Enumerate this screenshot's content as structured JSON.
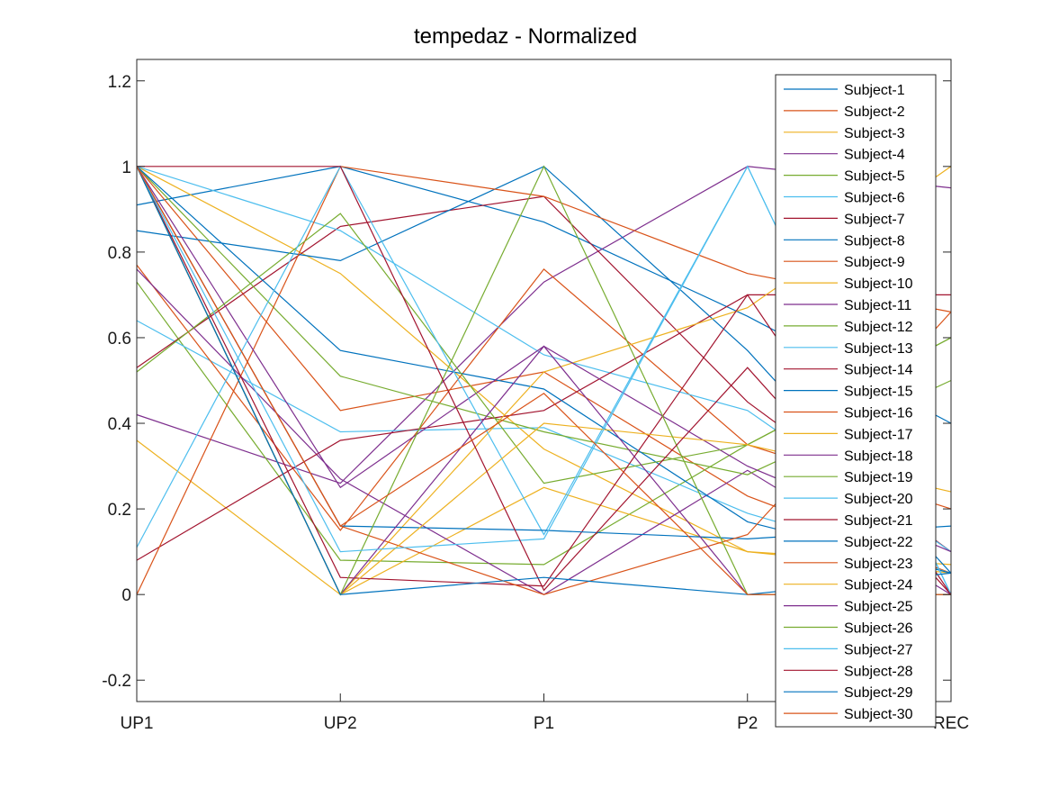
{
  "chart_data": {
    "type": "line",
    "title": "tempedaz - Normalized",
    "xlabel": "",
    "ylabel": "",
    "categories": [
      "UP1",
      "UP2",
      "P1",
      "P2",
      "REC"
    ],
    "ylim": [
      -0.25,
      1.25
    ],
    "yticks": [
      -0.2,
      0,
      0.2,
      0.4,
      0.6,
      0.8,
      1,
      1.2
    ],
    "ytick_labels": [
      "-0.2",
      "0",
      "0.2",
      "0.4",
      "0.6",
      "0.8",
      "1",
      "1.2"
    ],
    "grid": false,
    "legend_position": "top-right",
    "colors": [
      "#0072BD",
      "#D95319",
      "#EDB120",
      "#7E2F8E",
      "#77AC30",
      "#4DBEEE",
      "#A2142F"
    ],
    "series": [
      {
        "name": "Subject-1",
        "values": [
          0.91,
          1.0,
          0.87,
          0.65,
          0.4
        ]
      },
      {
        "name": "Subject-2",
        "values": [
          1.0,
          0.43,
          0.52,
          0.23,
          0.05
        ]
      },
      {
        "name": "Subject-3",
        "values": [
          1.0,
          0.75,
          0.34,
          0.1,
          0.07
        ]
      },
      {
        "name": "Subject-4",
        "values": [
          0.42,
          0.26,
          0.73,
          1.0,
          0.95
        ]
      },
      {
        "name": "Subject-5",
        "values": [
          0.73,
          0.08,
          0.07,
          0.35,
          0.6
        ]
      },
      {
        "name": "Subject-6",
        "values": [
          0.64,
          0.38,
          0.39,
          0.19,
          0.05
        ]
      },
      {
        "name": "Subject-7",
        "values": [
          0.53,
          0.86,
          0.93,
          0.45,
          0.1
        ]
      },
      {
        "name": "Subject-8",
        "values": [
          0.85,
          0.78,
          1.0,
          0.57,
          0.05
        ]
      },
      {
        "name": "Subject-9",
        "values": [
          0.77,
          0.15,
          0.76,
          0.35,
          0.2
        ]
      },
      {
        "name": "Subject-10",
        "values": [
          0.36,
          0.0,
          0.25,
          0.1,
          0.05
        ]
      },
      {
        "name": "Subject-11",
        "values": [
          0.76,
          0.27,
          0.0,
          0.29,
          0.0
        ]
      },
      {
        "name": "Subject-12",
        "values": [
          1.0,
          0.51,
          0.38,
          0.28,
          0.5
        ]
      },
      {
        "name": "Subject-13",
        "values": [
          1.0,
          0.85,
          0.56,
          0.43,
          0.1
        ]
      },
      {
        "name": "Subject-14",
        "values": [
          0.08,
          0.36,
          0.43,
          0.7,
          0.7
        ]
      },
      {
        "name": "Subject-15",
        "values": [
          1.0,
          0.57,
          0.48,
          0.17,
          0.05
        ]
      },
      {
        "name": "Subject-16",
        "values": [
          0.0,
          1.0,
          0.93,
          0.75,
          0.66
        ]
      },
      {
        "name": "Subject-17",
        "values": [
          1.0,
          0.0,
          0.52,
          0.67,
          1.0
        ]
      },
      {
        "name": "Subject-18",
        "values": [
          1.0,
          0.25,
          0.58,
          0.3,
          0.1
        ]
      },
      {
        "name": "Subject-19",
        "values": [
          0.52,
          0.89,
          0.26,
          0.35,
          0.6
        ]
      },
      {
        "name": "Subject-20",
        "values": [
          0.11,
          1.0,
          0.14,
          1.0,
          0.0
        ]
      },
      {
        "name": "Subject-21",
        "values": [
          1.0,
          0.04,
          0.02,
          0.7,
          0.0
        ]
      },
      {
        "name": "Subject-22",
        "values": [
          1.0,
          0.16,
          0.15,
          0.13,
          0.16
        ]
      },
      {
        "name": "Subject-23",
        "values": [
          1.0,
          0.16,
          0.0,
          0.14,
          0.66
        ]
      },
      {
        "name": "Subject-24",
        "values": [
          1.0,
          0.0,
          0.4,
          0.35,
          0.24
        ]
      },
      {
        "name": "Subject-25",
        "values": [
          1.0,
          0.0,
          0.58,
          0.0,
          0.0
        ]
      },
      {
        "name": "Subject-26",
        "values": [
          1.0,
          0.0,
          1.0,
          0.0,
          0.0
        ]
      },
      {
        "name": "Subject-27",
        "values": [
          1.0,
          0.1,
          0.13,
          1.0,
          0.0
        ]
      },
      {
        "name": "Subject-28",
        "values": [
          1.0,
          1.0,
          0.01,
          0.53,
          0.0
        ]
      },
      {
        "name": "Subject-29",
        "values": [
          1.0,
          0.0,
          0.04,
          0.0,
          0.05
        ]
      },
      {
        "name": "Subject-30",
        "values": [
          1.0,
          0.16,
          0.47,
          0.0,
          0.0
        ]
      }
    ]
  }
}
